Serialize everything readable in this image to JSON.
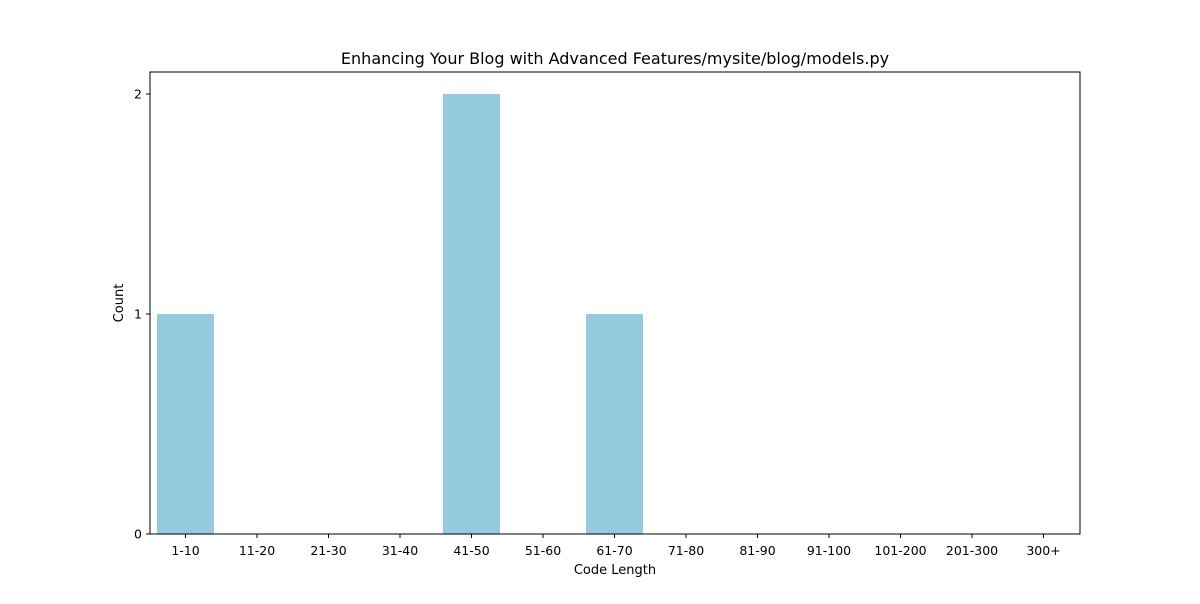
{
  "chart_data": {
    "type": "bar",
    "title": "Enhancing Your Blog with Advanced Features/mysite/blog/models.py",
    "xlabel": "Code Length",
    "ylabel": "Count",
    "categories": [
      "1-10",
      "11-20",
      "21-30",
      "31-40",
      "41-50",
      "51-60",
      "61-70",
      "71-80",
      "81-90",
      "91-100",
      "101-200",
      "201-300",
      "300+"
    ],
    "values": [
      1,
      0,
      0,
      0,
      2,
      0,
      1,
      0,
      0,
      0,
      0,
      0,
      0
    ],
    "yticks": [
      0,
      1,
      2
    ],
    "ylim": [
      0,
      2.1
    ],
    "grid": false,
    "legend": "none",
    "bar_color": "#96CADD"
  }
}
